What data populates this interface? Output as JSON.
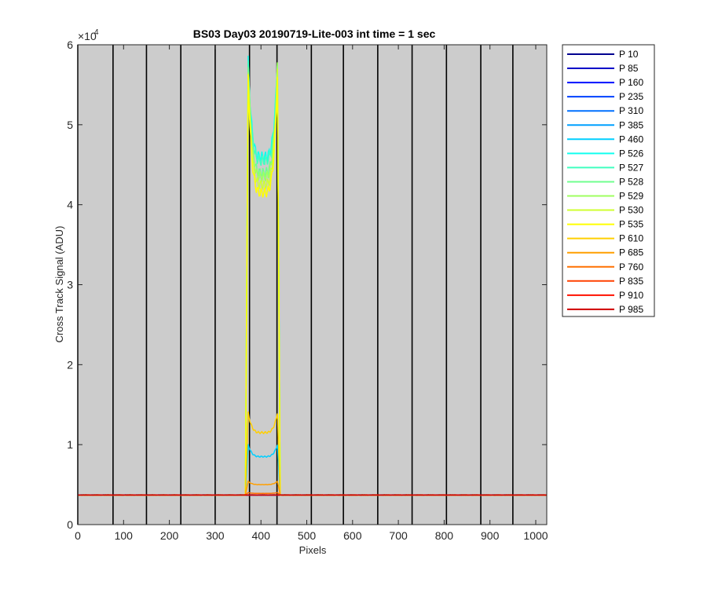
{
  "chart_data": {
    "type": "line",
    "title": "BS03 Day03 20190719-Lite-003 int time = 1 sec",
    "xlabel": "Pixels",
    "ylabel": "Cross Track Signal (ADU)",
    "exponent_base": "×10",
    "exponent_power": "4",
    "xlim": [
      0,
      1024
    ],
    "ylim": [
      0,
      60000
    ],
    "xticks": [
      "0",
      "100",
      "200",
      "300",
      "400",
      "500",
      "600",
      "700",
      "800",
      "900",
      "1000"
    ],
    "yticks": [
      "0",
      "1",
      "2",
      "3",
      "4",
      "5",
      "6"
    ],
    "xtick_values": [
      0,
      100,
      200,
      300,
      400,
      500,
      600,
      700,
      800,
      900,
      1000
    ],
    "ytick_values": [
      0,
      10000,
      20000,
      30000,
      40000,
      50000,
      60000
    ],
    "axes_background": "#cccccc",
    "vertical_dividers": [
      0,
      77,
      150,
      225,
      300,
      375,
      435,
      510,
      580,
      655,
      730,
      805,
      880,
      950
    ],
    "baseline": 3700,
    "legend_position": "outside-right",
    "series": [
      {
        "name": "P 10",
        "color": "#00008f",
        "profile": "flat"
      },
      {
        "name": "P 85",
        "color": "#0000c8",
        "profile": "flat"
      },
      {
        "name": "P 160",
        "color": "#0010ff",
        "profile": "flat"
      },
      {
        "name": "P 235",
        "color": "#0040ff",
        "profile": "flat"
      },
      {
        "name": "P 310",
        "color": "#0070ff",
        "profile": "flat"
      },
      {
        "name": "P 385",
        "color": "#00a0ff",
        "profile": "flat"
      },
      {
        "name": "P 460",
        "color": "#00cfff",
        "profile": "hump",
        "low": 8500,
        "high": 10000
      },
      {
        "name": "P 526",
        "color": "#10ffef",
        "profile": "hump",
        "low": 46000,
        "high": 58000
      },
      {
        "name": "P 527",
        "color": "#40ffbf",
        "profile": "hump",
        "low": 45500,
        "high": 57800
      },
      {
        "name": "P 528",
        "color": "#70ff8f",
        "profile": "hump",
        "low": 44000,
        "high": 57600
      },
      {
        "name": "P 529",
        "color": "#9fff60",
        "profile": "hump",
        "low": 43500,
        "high": 57200
      },
      {
        "name": "P 530",
        "color": "#cfff30",
        "profile": "hump",
        "low": 42500,
        "high": 56500
      },
      {
        "name": "P 535",
        "color": "#ffff00",
        "profile": "hump",
        "low": 41500,
        "high": 56000
      },
      {
        "name": "P 610",
        "color": "#ffcf00",
        "profile": "hump",
        "low": 11500,
        "high": 14000
      },
      {
        "name": "P 685",
        "color": "#ff9f00",
        "profile": "hump",
        "low": 5000,
        "high": 5400
      },
      {
        "name": "P 760",
        "color": "#ff7000",
        "profile": "hump",
        "low": 3900,
        "high": 4000
      },
      {
        "name": "P 835",
        "color": "#ff4000",
        "profile": "flat"
      },
      {
        "name": "P 910",
        "color": "#ff1000",
        "profile": "flat"
      },
      {
        "name": "P 985",
        "color": "#cf0000",
        "profile": "flat"
      }
    ]
  }
}
